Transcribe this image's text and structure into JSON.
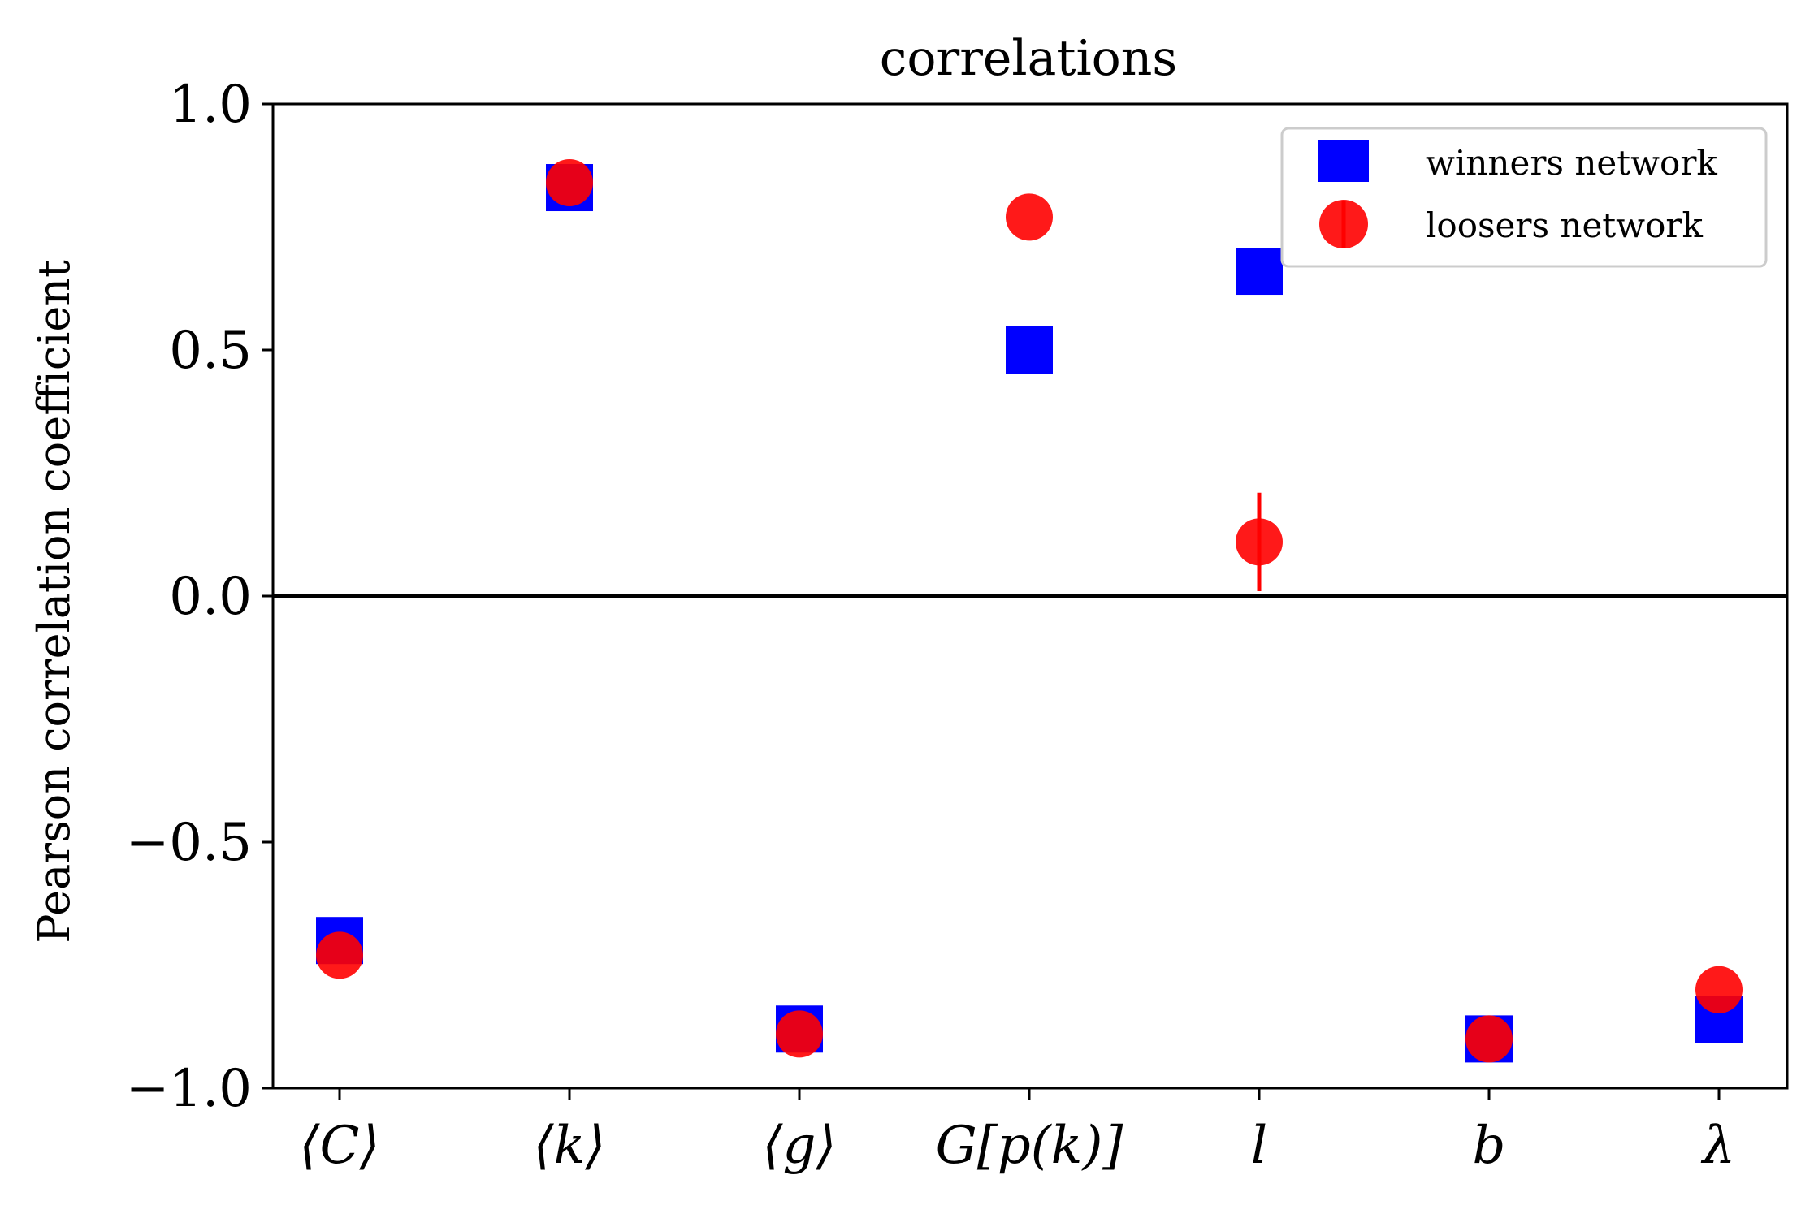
{
  "chart_data": {
    "type": "scatter",
    "title": "correlations",
    "xlabel": "",
    "ylabel": "Pearson correlation coefficient",
    "categories": [
      "⟨C⟩",
      "⟨k⟩",
      "⟨g⟩",
      "G[p(k)]",
      "l",
      "b",
      "λ"
    ],
    "ylim": [
      -1.0,
      1.0
    ],
    "yticks": [
      1.0,
      0.5,
      0.0,
      -0.5,
      -1.0
    ],
    "ytick_labels": [
      "1.0",
      "0.5",
      "0.0",
      "−0.5",
      "−1.0"
    ],
    "grid": false,
    "zero_line": true,
    "legend_position": "top-right",
    "series": [
      {
        "name": "winners network",
        "marker": "square",
        "color": "#0000ff",
        "values": [
          -0.7,
          0.83,
          -0.88,
          0.5,
          0.66,
          -0.9,
          -0.86
        ]
      },
      {
        "name": "loosers network",
        "marker": "circle",
        "color": "#ff0000",
        "values": [
          -0.73,
          0.84,
          -0.89,
          0.77,
          0.11,
          -0.9,
          -0.8
        ],
        "yerr": [
          0,
          0,
          0,
          0,
          0.1,
          0,
          0
        ]
      }
    ]
  }
}
